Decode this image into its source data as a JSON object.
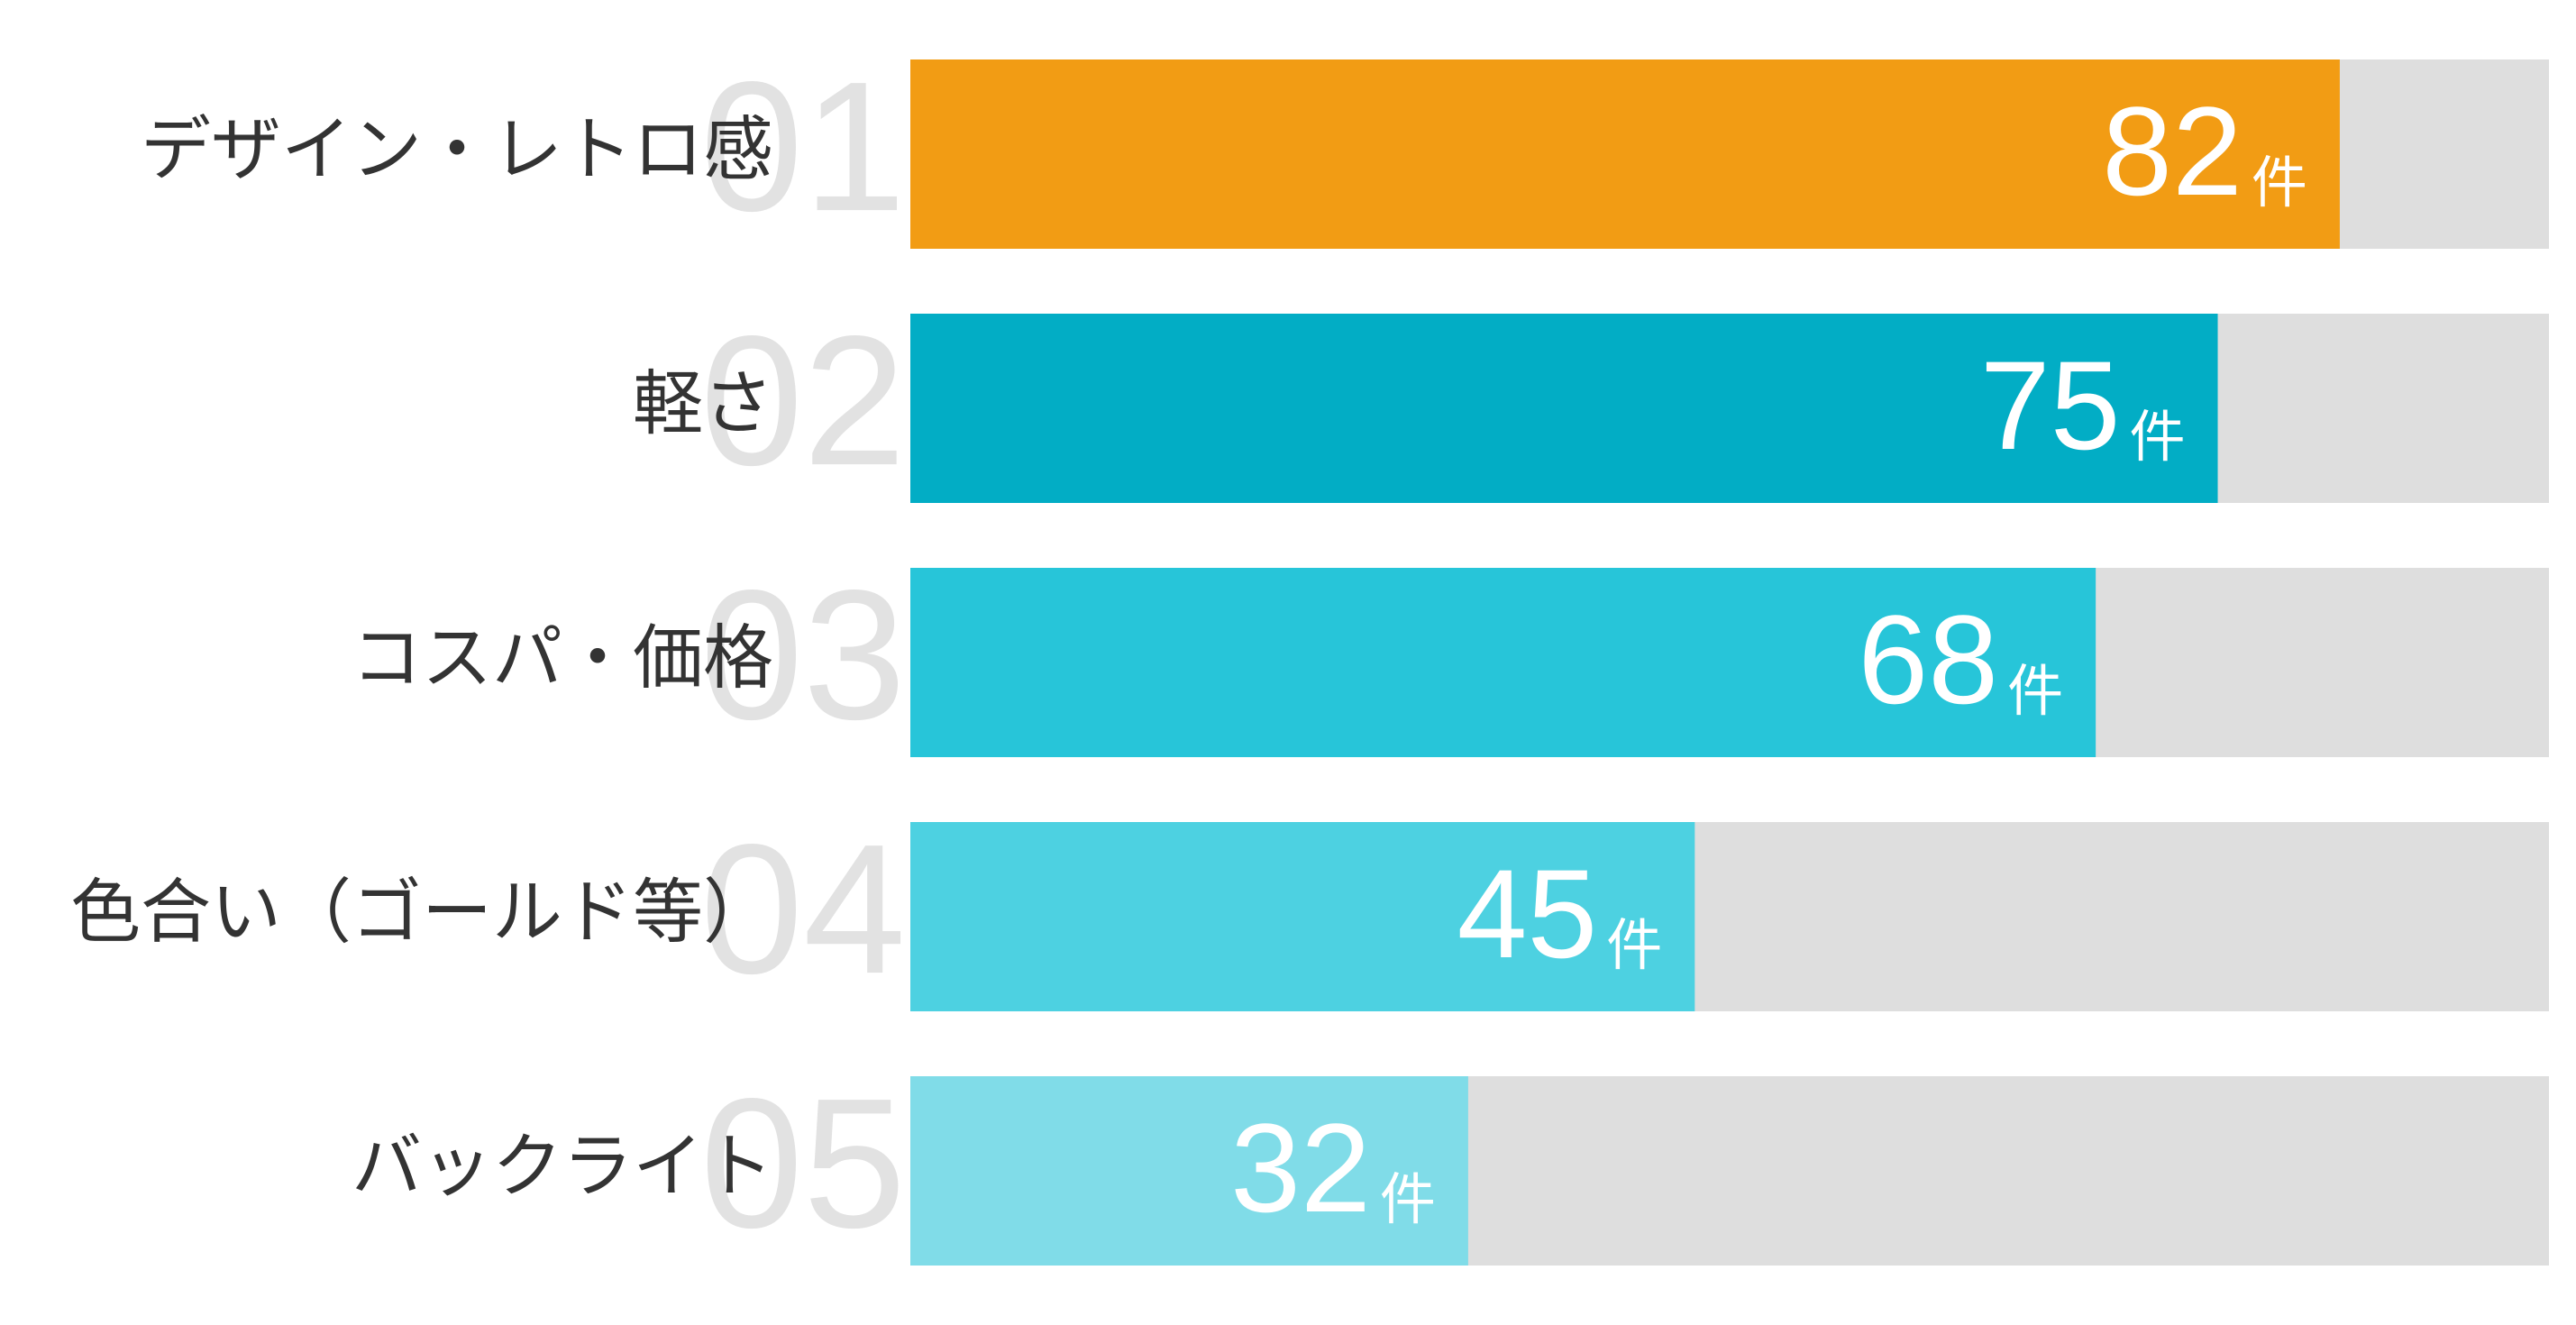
{
  "chart_data": {
    "type": "bar",
    "orientation": "horizontal",
    "categories": [
      "デザイン・レトロ感",
      "軽さ",
      "コスパ・価格",
      "色合い（ゴールド等）",
      "バックライト"
    ],
    "ranks": [
      "01",
      "02",
      "03",
      "04",
      "05"
    ],
    "values": [
      82,
      75,
      68,
      45,
      32
    ],
    "unit": "件",
    "colors": [
      "#f29c14",
      "#02adc5",
      "#27c5d9",
      "#4dd1e1",
      "#80dce8"
    ],
    "track_color": "#dedede",
    "xlim": [
      0,
      94
    ]
  }
}
